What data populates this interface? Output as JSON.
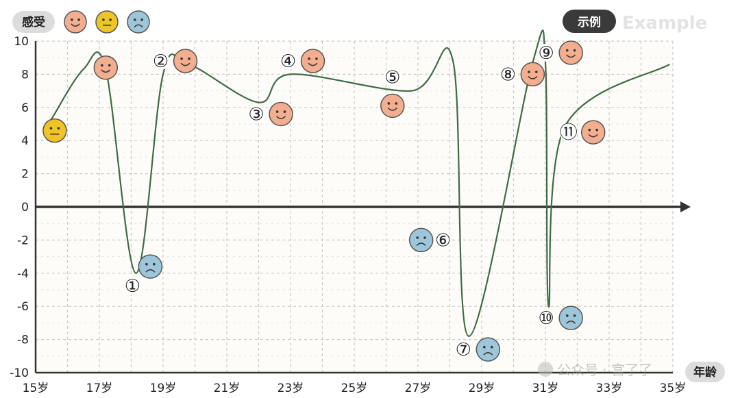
{
  "legend": {
    "label": "感受",
    "faces": [
      {
        "mood": "happy",
        "color": "#f2ae8f"
      },
      {
        "mood": "neutral",
        "color": "#eec426"
      },
      {
        "mood": "sad",
        "color": "#9ec6da"
      }
    ]
  },
  "example_pill": {
    "label": "示例",
    "sub": "Example"
  },
  "watermark": "公众号 · 宫了了",
  "chart_data": {
    "type": "line",
    "xlabel": "年龄",
    "x_ticks": [
      "15岁",
      "17岁",
      "19岁",
      "21岁",
      "23岁",
      "25岁",
      "27岁",
      "29岁",
      "31岁",
      "33岁",
      "35岁"
    ],
    "xlim": [
      15,
      35
    ],
    "ylim": [
      -10,
      10
    ],
    "y_ticks": [
      10,
      8,
      6,
      4,
      2,
      0,
      -2,
      -4,
      -6,
      -8,
      -10
    ],
    "grid": true,
    "curve": [
      {
        "x": 15.5,
        "y": 5.3
      },
      {
        "x": 16.5,
        "y": 8.3
      },
      {
        "x": 17.2,
        "y": 8.3
      },
      {
        "x": 18.15,
        "y": -4.0
      },
      {
        "x": 19.0,
        "y": 8.0
      },
      {
        "x": 19.8,
        "y": 8.6
      },
      {
        "x": 22.0,
        "y": 6.3
      },
      {
        "x": 23.0,
        "y": 8.0
      },
      {
        "x": 26.8,
        "y": 7.0
      },
      {
        "x": 28.1,
        "y": 8.8
      },
      {
        "x": 28.6,
        "y": -7.8
      },
      {
        "x": 30.6,
        "y": 8.7
      },
      {
        "x": 31.0,
        "y": 8.7
      },
      {
        "x": 31.1,
        "y": -6.0
      },
      {
        "x": 31.6,
        "y": 4.8
      },
      {
        "x": 34.9,
        "y": 8.6
      }
    ],
    "events": [
      {
        "label": "",
        "x": 15.6,
        "y": 4.6,
        "mood": "neutral",
        "label_side": "none"
      },
      {
        "label": "",
        "x": 17.2,
        "y": 8.4,
        "mood": "happy",
        "label_side": "none"
      },
      {
        "label": "①",
        "x": 18.6,
        "y": -3.6,
        "mood": "sad",
        "label_side": "below-left"
      },
      {
        "label": "②",
        "x": 19.7,
        "y": 8.8,
        "mood": "happy",
        "label_side": "left"
      },
      {
        "label": "③",
        "x": 22.7,
        "y": 5.6,
        "mood": "happy",
        "label_side": "left"
      },
      {
        "label": "④",
        "x": 23.7,
        "y": 8.8,
        "mood": "happy",
        "label_side": "left"
      },
      {
        "label": "⑤",
        "x": 26.2,
        "y": 6.1,
        "mood": "happy",
        "label_side": "above"
      },
      {
        "label": "⑥",
        "x": 27.1,
        "y": -2.0,
        "mood": "sad",
        "label_side": "right"
      },
      {
        "label": "⑦",
        "x": 29.2,
        "y": -8.6,
        "mood": "sad",
        "label_side": "left"
      },
      {
        "label": "⑧",
        "x": 30.6,
        "y": 8.0,
        "mood": "happy",
        "label_side": "left"
      },
      {
        "label": "⑨",
        "x": 31.8,
        "y": 9.3,
        "mood": "happy",
        "label_side": "left"
      },
      {
        "label": "⑩",
        "x": 31.8,
        "y": -6.7,
        "mood": "sad",
        "label_side": "left"
      },
      {
        "label": "⑪",
        "x": 32.5,
        "y": 4.5,
        "mood": "happy",
        "label_side": "left"
      }
    ]
  }
}
